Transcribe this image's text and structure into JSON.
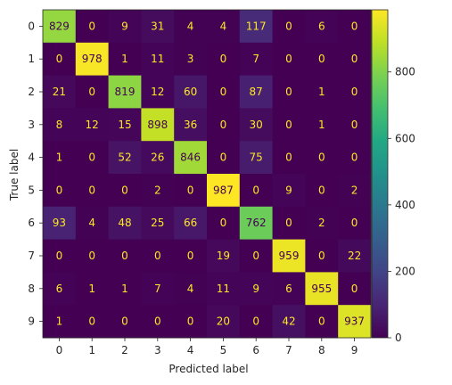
{
  "chart_data": {
    "type": "heatmap",
    "xlabel": "Predicted label",
    "ylabel": "True label",
    "x_ticks": [
      "0",
      "1",
      "2",
      "3",
      "4",
      "5",
      "6",
      "7",
      "8",
      "9"
    ],
    "y_ticks": [
      "0",
      "1",
      "2",
      "3",
      "4",
      "5",
      "6",
      "7",
      "8",
      "9"
    ],
    "matrix": [
      [
        829,
        0,
        9,
        31,
        4,
        4,
        117,
        0,
        6,
        0
      ],
      [
        0,
        978,
        1,
        11,
        3,
        0,
        7,
        0,
        0,
        0
      ],
      [
        21,
        0,
        819,
        12,
        60,
        0,
        87,
        0,
        1,
        0
      ],
      [
        8,
        12,
        15,
        898,
        36,
        0,
        30,
        0,
        1,
        0
      ],
      [
        1,
        0,
        52,
        26,
        846,
        0,
        75,
        0,
        0,
        0
      ],
      [
        0,
        0,
        0,
        2,
        0,
        987,
        0,
        9,
        0,
        2
      ],
      [
        93,
        4,
        48,
        25,
        66,
        0,
        762,
        0,
        2,
        0
      ],
      [
        0,
        0,
        0,
        0,
        0,
        19,
        0,
        959,
        0,
        22
      ],
      [
        6,
        1,
        1,
        7,
        4,
        11,
        9,
        6,
        955,
        0
      ],
      [
        1,
        0,
        0,
        0,
        0,
        20,
        0,
        42,
        0,
        937
      ]
    ],
    "colormap": "viridis",
    "colorbar": {
      "range": [
        0,
        987
      ],
      "ticks": [
        "0",
        "200",
        "400",
        "600",
        "800"
      ],
      "tick_values": [
        0,
        200,
        400,
        600,
        800
      ]
    },
    "grid": false,
    "legend": "colorbar-right",
    "colors": {
      "text_on_dark": "#fde725",
      "text_on_light": "#440154"
    }
  }
}
